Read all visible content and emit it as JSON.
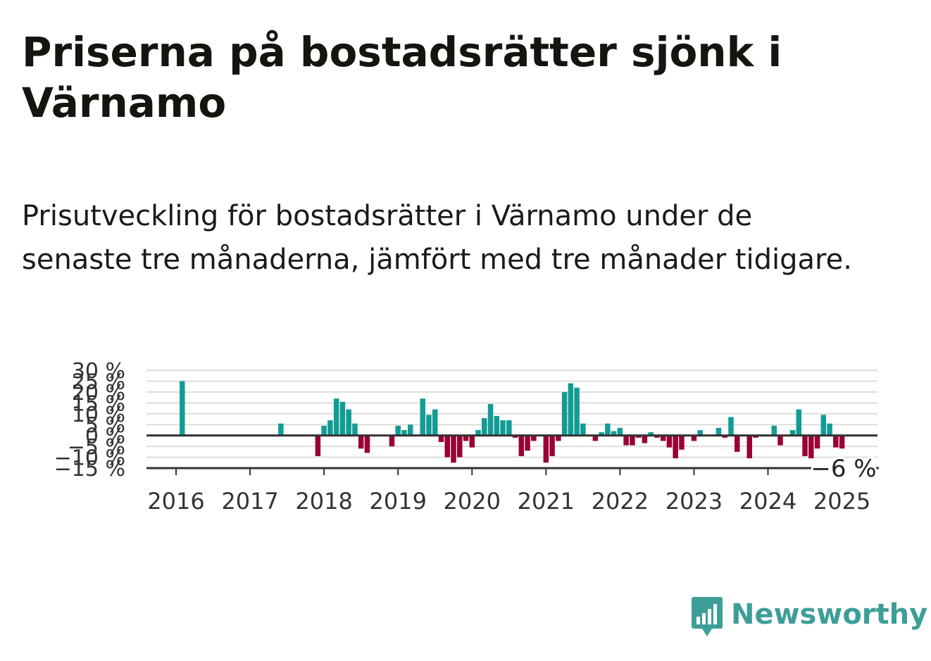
{
  "title": "Priserna på bostadsrätter sjönk i Värnamo",
  "subtitle": "Prisutveckling för bostadsrätter i Värnamo under de senaste tre månaderna, jämfört med tre månader tidigare.",
  "brand": {
    "name": "Newsworthy",
    "color": "#3d9e98"
  },
  "colors": {
    "positive": "#119c94",
    "negative": "#990033",
    "gridline": "#dddddd",
    "zero_line": "#333333"
  },
  "chart_data": {
    "type": "bar",
    "y_tick_labels": [
      "30 %",
      "25 %",
      "20 %",
      "15 %",
      "10 %",
      "5 %",
      "0 %",
      "−5 %",
      "−10 %",
      "−15 %"
    ],
    "y_tick_values": [
      30,
      25,
      20,
      15,
      10,
      5,
      0,
      -5,
      -10,
      -15
    ],
    "x_tick_labels": [
      "2016",
      "2017",
      "2018",
      "2019",
      "2020",
      "2021",
      "2022",
      "2023",
      "2024",
      "2025"
    ],
    "ylim": [
      -15,
      30
    ],
    "grid": true,
    "last_value_label": "−6 %",
    "series": [
      {
        "values": [
          {
            "x": "2016-02",
            "y": 25
          },
          {
            "x": "2017-06",
            "y": 5.5
          },
          {
            "x": "2017-12",
            "y": -9.5
          },
          {
            "x": "2018-01",
            "y": 4.5
          },
          {
            "x": "2018-02",
            "y": 7
          },
          {
            "x": "2018-03",
            "y": 17
          },
          {
            "x": "2018-04",
            "y": 15.5
          },
          {
            "x": "2018-05",
            "y": 12
          },
          {
            "x": "2018-06",
            "y": 5.5
          },
          {
            "x": "2018-07",
            "y": -6
          },
          {
            "x": "2018-08",
            "y": -8
          },
          {
            "x": "2018-12",
            "y": -5
          },
          {
            "x": "2019-01",
            "y": 4.5
          },
          {
            "x": "2019-02",
            "y": 2.5
          },
          {
            "x": "2019-03",
            "y": 5
          },
          {
            "x": "2019-05",
            "y": 17
          },
          {
            "x": "2019-06",
            "y": 9.5
          },
          {
            "x": "2019-07",
            "y": 12
          },
          {
            "x": "2019-08",
            "y": -3
          },
          {
            "x": "2019-09",
            "y": -10
          },
          {
            "x": "2019-10",
            "y": -12.5
          },
          {
            "x": "2019-11",
            "y": -10
          },
          {
            "x": "2019-12",
            "y": -2.5
          },
          {
            "x": "2020-01",
            "y": -5.5
          },
          {
            "x": "2020-02",
            "y": 2.5
          },
          {
            "x": "2020-03",
            "y": 8
          },
          {
            "x": "2020-04",
            "y": 14.5
          },
          {
            "x": "2020-05",
            "y": 9
          },
          {
            "x": "2020-06",
            "y": 7
          },
          {
            "x": "2020-07",
            "y": 7
          },
          {
            "x": "2020-08",
            "y": -1
          },
          {
            "x": "2020-09",
            "y": -9.5
          },
          {
            "x": "2020-10",
            "y": -7
          },
          {
            "x": "2020-11",
            "y": -2.5
          },
          {
            "x": "2020-12",
            "y": 0.5
          },
          {
            "x": "2021-01",
            "y": -12.5
          },
          {
            "x": "2021-02",
            "y": -9.5
          },
          {
            "x": "2021-03",
            "y": -2.5
          },
          {
            "x": "2021-04",
            "y": 20
          },
          {
            "x": "2021-05",
            "y": 24
          },
          {
            "x": "2021-06",
            "y": 22
          },
          {
            "x": "2021-07",
            "y": 5.5
          },
          {
            "x": "2021-09",
            "y": -2.5
          },
          {
            "x": "2021-10",
            "y": 1.5
          },
          {
            "x": "2021-11",
            "y": 5.5
          },
          {
            "x": "2021-12",
            "y": 2
          },
          {
            "x": "2022-01",
            "y": 3.5
          },
          {
            "x": "2022-02",
            "y": -4.5
          },
          {
            "x": "2022-03",
            "y": -4.5
          },
          {
            "x": "2022-04",
            "y": -1
          },
          {
            "x": "2022-05",
            "y": -3.5
          },
          {
            "x": "2022-06",
            "y": 1.5
          },
          {
            "x": "2022-07",
            "y": -1
          },
          {
            "x": "2022-08",
            "y": -2.5
          },
          {
            "x": "2022-09",
            "y": -5.5
          },
          {
            "x": "2022-10",
            "y": -10.5
          },
          {
            "x": "2022-11",
            "y": -6.5
          },
          {
            "x": "2023-01",
            "y": -2.5
          },
          {
            "x": "2023-02",
            "y": 2.5
          },
          {
            "x": "2023-05",
            "y": 3.5
          },
          {
            "x": "2023-06",
            "y": -1
          },
          {
            "x": "2023-07",
            "y": 8.5
          },
          {
            "x": "2023-08",
            "y": -7.5
          },
          {
            "x": "2023-10",
            "y": -10.5
          },
          {
            "x": "2023-11",
            "y": -1
          },
          {
            "x": "2023-12",
            "y": 0.5
          },
          {
            "x": "2024-02",
            "y": 4.5
          },
          {
            "x": "2024-03",
            "y": -4.5
          },
          {
            "x": "2024-05",
            "y": 2.5
          },
          {
            "x": "2024-06",
            "y": 12
          },
          {
            "x": "2024-07",
            "y": -9.5
          },
          {
            "x": "2024-08",
            "y": -10.5
          },
          {
            "x": "2024-09",
            "y": -6
          },
          {
            "x": "2024-10",
            "y": 9.5
          },
          {
            "x": "2024-11",
            "y": 5.5
          },
          {
            "x": "2024-12",
            "y": -5.5
          },
          {
            "x": "2025-01",
            "y": -6
          }
        ]
      }
    ]
  }
}
